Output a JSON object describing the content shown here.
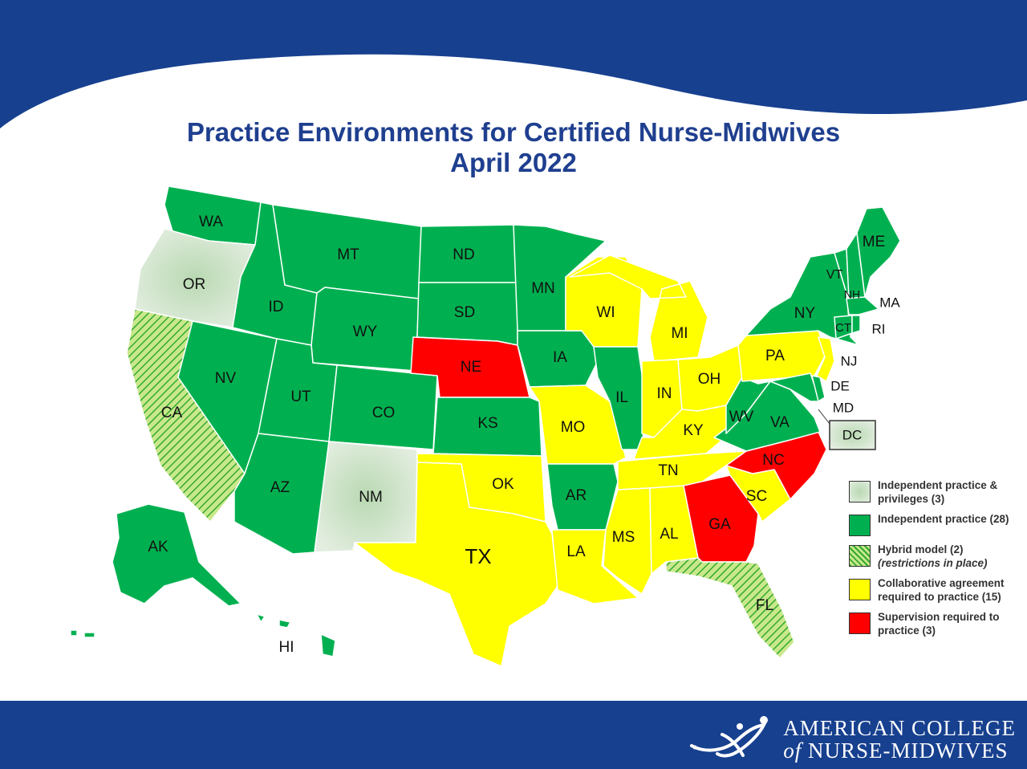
{
  "title": {
    "line1": "Practice Environments for Certified Nurse-Midwives",
    "line2": "April 2022"
  },
  "colors": {
    "independent_privileges": "#d6e8d2",
    "independent": "#00b050",
    "hybrid": "#33cc33",
    "collaborative": "#ffff00",
    "supervision": "#ff0000",
    "brand_blue": "#17408f"
  },
  "states": [
    {
      "abbr": "WA",
      "category": "independent"
    },
    {
      "abbr": "OR",
      "category": "independent_privileges"
    },
    {
      "abbr": "CA",
      "category": "hybrid"
    },
    {
      "abbr": "NV",
      "category": "independent"
    },
    {
      "abbr": "ID",
      "category": "independent"
    },
    {
      "abbr": "MT",
      "category": "independent"
    },
    {
      "abbr": "WY",
      "category": "independent"
    },
    {
      "abbr": "UT",
      "category": "independent"
    },
    {
      "abbr": "AZ",
      "category": "independent"
    },
    {
      "abbr": "CO",
      "category": "independent"
    },
    {
      "abbr": "NM",
      "category": "independent_privileges"
    },
    {
      "abbr": "ND",
      "category": "independent"
    },
    {
      "abbr": "SD",
      "category": "independent"
    },
    {
      "abbr": "NE",
      "category": "supervision"
    },
    {
      "abbr": "KS",
      "category": "independent"
    },
    {
      "abbr": "OK",
      "category": "collaborative"
    },
    {
      "abbr": "TX",
      "category": "collaborative"
    },
    {
      "abbr": "MN",
      "category": "independent"
    },
    {
      "abbr": "IA",
      "category": "independent"
    },
    {
      "abbr": "MO",
      "category": "collaborative"
    },
    {
      "abbr": "AR",
      "category": "independent"
    },
    {
      "abbr": "LA",
      "category": "collaborative"
    },
    {
      "abbr": "WI",
      "category": "collaborative"
    },
    {
      "abbr": "IL",
      "category": "independent"
    },
    {
      "abbr": "MI",
      "category": "collaborative"
    },
    {
      "abbr": "IN",
      "category": "collaborative"
    },
    {
      "abbr": "OH",
      "category": "collaborative"
    },
    {
      "abbr": "KY",
      "category": "collaborative"
    },
    {
      "abbr": "TN",
      "category": "collaborative"
    },
    {
      "abbr": "MS",
      "category": "collaborative"
    },
    {
      "abbr": "AL",
      "category": "collaborative"
    },
    {
      "abbr": "GA",
      "category": "supervision"
    },
    {
      "abbr": "FL",
      "category": "hybrid"
    },
    {
      "abbr": "SC",
      "category": "collaborative"
    },
    {
      "abbr": "NC",
      "category": "supervision"
    },
    {
      "abbr": "VA",
      "category": "independent"
    },
    {
      "abbr": "WV",
      "category": "independent"
    },
    {
      "abbr": "PA",
      "category": "collaborative"
    },
    {
      "abbr": "NY",
      "category": "independent"
    },
    {
      "abbr": "VT",
      "category": "independent"
    },
    {
      "abbr": "NH",
      "category": "independent"
    },
    {
      "abbr": "ME",
      "category": "independent"
    },
    {
      "abbr": "MA",
      "category": "independent"
    },
    {
      "abbr": "RI",
      "category": "independent"
    },
    {
      "abbr": "CT",
      "category": "independent"
    },
    {
      "abbr": "NJ",
      "category": "collaborative"
    },
    {
      "abbr": "DE",
      "category": "independent"
    },
    {
      "abbr": "MD",
      "category": "independent"
    },
    {
      "abbr": "DC",
      "category": "independent_privileges"
    },
    {
      "abbr": "AK",
      "category": "independent"
    },
    {
      "abbr": "HI",
      "category": "independent"
    }
  ],
  "legend": [
    {
      "key": "independent_privileges",
      "label": "Independent practice & privileges (3)",
      "note": ""
    },
    {
      "key": "independent",
      "label": "Independent practice (28)",
      "note": ""
    },
    {
      "key": "hybrid",
      "label": "Hybrid model (2)",
      "note": "(restrictions in place)"
    },
    {
      "key": "collaborative",
      "label": "Collaborative agreement required to practice (15)",
      "note": ""
    },
    {
      "key": "supervision",
      "label": "Supervision required to practice (3)",
      "note": ""
    }
  ],
  "logo": {
    "line1": "AMERICAN COLLEGE",
    "line2_of": "of",
    "line2_rest": "NURSE-MIDWIVES"
  }
}
